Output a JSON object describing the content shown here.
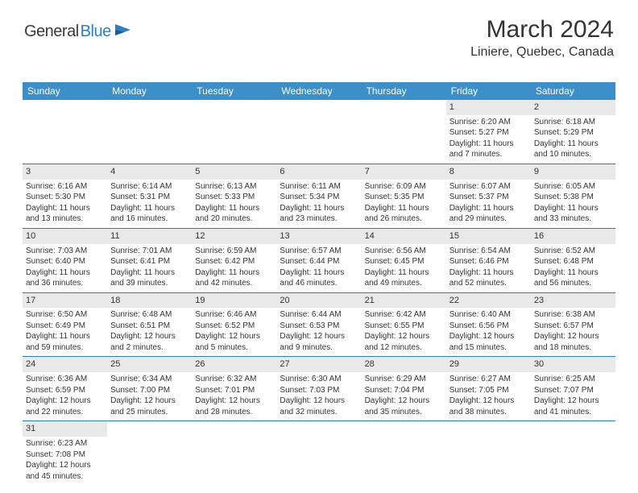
{
  "logo": {
    "part1": "General",
    "part2": "Blue"
  },
  "header": {
    "month": "March 2024",
    "location": "Liniere, Quebec, Canada"
  },
  "colors": {
    "header_bg": "#3d8fc9",
    "header_fg": "#ffffff",
    "daynum_bg": "#e9e9e9",
    "week_border": "#2d7fc2",
    "text": "#333333",
    "logo_gray": "#3a3a3a",
    "logo_blue": "#2d7fc2"
  },
  "dayNames": [
    "Sunday",
    "Monday",
    "Tuesday",
    "Wednesday",
    "Thursday",
    "Friday",
    "Saturday"
  ],
  "weeks": [
    [
      {
        "n": "",
        "empty": true
      },
      {
        "n": "",
        "empty": true
      },
      {
        "n": "",
        "empty": true
      },
      {
        "n": "",
        "empty": true
      },
      {
        "n": "",
        "empty": true
      },
      {
        "n": "1",
        "sunrise": "Sunrise: 6:20 AM",
        "sunset": "Sunset: 5:27 PM",
        "daylight": "Daylight: 11 hours and 7 minutes."
      },
      {
        "n": "2",
        "sunrise": "Sunrise: 6:18 AM",
        "sunset": "Sunset: 5:29 PM",
        "daylight": "Daylight: 11 hours and 10 minutes."
      }
    ],
    [
      {
        "n": "3",
        "sunrise": "Sunrise: 6:16 AM",
        "sunset": "Sunset: 5:30 PM",
        "daylight": "Daylight: 11 hours and 13 minutes."
      },
      {
        "n": "4",
        "sunrise": "Sunrise: 6:14 AM",
        "sunset": "Sunset: 5:31 PM",
        "daylight": "Daylight: 11 hours and 16 minutes."
      },
      {
        "n": "5",
        "sunrise": "Sunrise: 6:13 AM",
        "sunset": "Sunset: 5:33 PM",
        "daylight": "Daylight: 11 hours and 20 minutes."
      },
      {
        "n": "6",
        "sunrise": "Sunrise: 6:11 AM",
        "sunset": "Sunset: 5:34 PM",
        "daylight": "Daylight: 11 hours and 23 minutes."
      },
      {
        "n": "7",
        "sunrise": "Sunrise: 6:09 AM",
        "sunset": "Sunset: 5:35 PM",
        "daylight": "Daylight: 11 hours and 26 minutes."
      },
      {
        "n": "8",
        "sunrise": "Sunrise: 6:07 AM",
        "sunset": "Sunset: 5:37 PM",
        "daylight": "Daylight: 11 hours and 29 minutes."
      },
      {
        "n": "9",
        "sunrise": "Sunrise: 6:05 AM",
        "sunset": "Sunset: 5:38 PM",
        "daylight": "Daylight: 11 hours and 33 minutes."
      }
    ],
    [
      {
        "n": "10",
        "sunrise": "Sunrise: 7:03 AM",
        "sunset": "Sunset: 6:40 PM",
        "daylight": "Daylight: 11 hours and 36 minutes."
      },
      {
        "n": "11",
        "sunrise": "Sunrise: 7:01 AM",
        "sunset": "Sunset: 6:41 PM",
        "daylight": "Daylight: 11 hours and 39 minutes."
      },
      {
        "n": "12",
        "sunrise": "Sunrise: 6:59 AM",
        "sunset": "Sunset: 6:42 PM",
        "daylight": "Daylight: 11 hours and 42 minutes."
      },
      {
        "n": "13",
        "sunrise": "Sunrise: 6:57 AM",
        "sunset": "Sunset: 6:44 PM",
        "daylight": "Daylight: 11 hours and 46 minutes."
      },
      {
        "n": "14",
        "sunrise": "Sunrise: 6:56 AM",
        "sunset": "Sunset: 6:45 PM",
        "daylight": "Daylight: 11 hours and 49 minutes."
      },
      {
        "n": "15",
        "sunrise": "Sunrise: 6:54 AM",
        "sunset": "Sunset: 6:46 PM",
        "daylight": "Daylight: 11 hours and 52 minutes."
      },
      {
        "n": "16",
        "sunrise": "Sunrise: 6:52 AM",
        "sunset": "Sunset: 6:48 PM",
        "daylight": "Daylight: 11 hours and 56 minutes."
      }
    ],
    [
      {
        "n": "17",
        "sunrise": "Sunrise: 6:50 AM",
        "sunset": "Sunset: 6:49 PM",
        "daylight": "Daylight: 11 hours and 59 minutes."
      },
      {
        "n": "18",
        "sunrise": "Sunrise: 6:48 AM",
        "sunset": "Sunset: 6:51 PM",
        "daylight": "Daylight: 12 hours and 2 minutes."
      },
      {
        "n": "19",
        "sunrise": "Sunrise: 6:46 AM",
        "sunset": "Sunset: 6:52 PM",
        "daylight": "Daylight: 12 hours and 5 minutes."
      },
      {
        "n": "20",
        "sunrise": "Sunrise: 6:44 AM",
        "sunset": "Sunset: 6:53 PM",
        "daylight": "Daylight: 12 hours and 9 minutes."
      },
      {
        "n": "21",
        "sunrise": "Sunrise: 6:42 AM",
        "sunset": "Sunset: 6:55 PM",
        "daylight": "Daylight: 12 hours and 12 minutes."
      },
      {
        "n": "22",
        "sunrise": "Sunrise: 6:40 AM",
        "sunset": "Sunset: 6:56 PM",
        "daylight": "Daylight: 12 hours and 15 minutes."
      },
      {
        "n": "23",
        "sunrise": "Sunrise: 6:38 AM",
        "sunset": "Sunset: 6:57 PM",
        "daylight": "Daylight: 12 hours and 18 minutes."
      }
    ],
    [
      {
        "n": "24",
        "sunrise": "Sunrise: 6:36 AM",
        "sunset": "Sunset: 6:59 PM",
        "daylight": "Daylight: 12 hours and 22 minutes."
      },
      {
        "n": "25",
        "sunrise": "Sunrise: 6:34 AM",
        "sunset": "Sunset: 7:00 PM",
        "daylight": "Daylight: 12 hours and 25 minutes."
      },
      {
        "n": "26",
        "sunrise": "Sunrise: 6:32 AM",
        "sunset": "Sunset: 7:01 PM",
        "daylight": "Daylight: 12 hours and 28 minutes."
      },
      {
        "n": "27",
        "sunrise": "Sunrise: 6:30 AM",
        "sunset": "Sunset: 7:03 PM",
        "daylight": "Daylight: 12 hours and 32 minutes."
      },
      {
        "n": "28",
        "sunrise": "Sunrise: 6:29 AM",
        "sunset": "Sunset: 7:04 PM",
        "daylight": "Daylight: 12 hours and 35 minutes."
      },
      {
        "n": "29",
        "sunrise": "Sunrise: 6:27 AM",
        "sunset": "Sunset: 7:05 PM",
        "daylight": "Daylight: 12 hours and 38 minutes."
      },
      {
        "n": "30",
        "sunrise": "Sunrise: 6:25 AM",
        "sunset": "Sunset: 7:07 PM",
        "daylight": "Daylight: 12 hours and 41 minutes."
      }
    ],
    [
      {
        "n": "31",
        "sunrise": "Sunrise: 6:23 AM",
        "sunset": "Sunset: 7:08 PM",
        "daylight": "Daylight: 12 hours and 45 minutes."
      },
      {
        "n": "",
        "empty": true
      },
      {
        "n": "",
        "empty": true
      },
      {
        "n": "",
        "empty": true
      },
      {
        "n": "",
        "empty": true
      },
      {
        "n": "",
        "empty": true
      },
      {
        "n": "",
        "empty": true
      }
    ]
  ]
}
